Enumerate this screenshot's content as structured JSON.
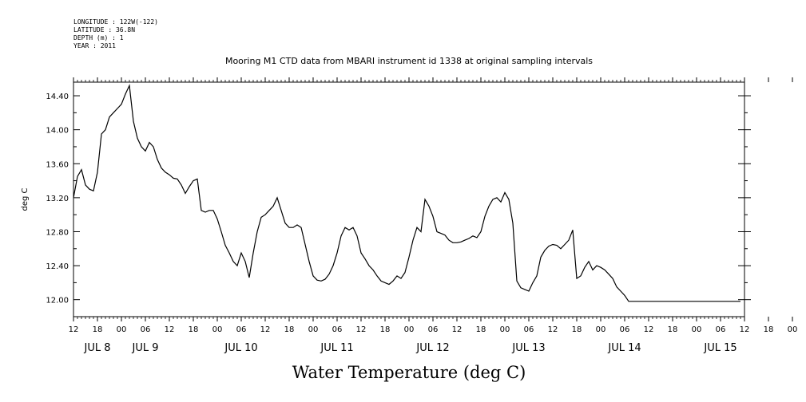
{
  "meta": {
    "longitude": "LONGITUDE : 122W(-122)",
    "latitude": "LATITUDE : 36.8N",
    "depth": "DEPTH (m) : 1",
    "year": "YEAR : 2011"
  },
  "chart_data": {
    "type": "line",
    "title": "Mooring M1 CTD data from MBARI instrument id 1338 at original sampling intervals",
    "xlabel": "Water Temperature (deg C)",
    "ylabel": "deg C",
    "xlim_hours": [
      0,
      168
    ],
    "ylim": [
      11.8,
      14.56
    ],
    "yticks": [
      "12.00",
      "12.40",
      "12.80",
      "13.20",
      "13.60",
      "14.00",
      "14.40"
    ],
    "xticks": [
      "12",
      "18",
      "00",
      "06",
      "12",
      "18",
      "00",
      "06",
      "12",
      "18",
      "00",
      "06",
      "12",
      "18",
      "00",
      "06",
      "12",
      "18",
      "00",
      "06",
      "12",
      "18",
      "00",
      "06",
      "12",
      "18",
      "00",
      "06",
      "12",
      "18",
      "00",
      "06"
    ],
    "day_labels": [
      "JUL  8",
      "JUL  9",
      "JUL 10",
      "JUL 11",
      "JUL 12",
      "JUL 13",
      "JUL 14",
      "JUL 15"
    ],
    "grid": false,
    "series": [
      {
        "x": [
          0,
          1,
          2,
          3,
          4,
          5,
          6,
          7,
          8,
          9,
          10,
          11,
          12,
          13,
          14,
          15,
          16,
          17,
          18,
          19,
          20,
          21,
          22,
          23,
          24,
          25,
          26,
          27,
          28,
          29,
          30,
          31,
          32,
          33,
          34,
          35,
          36,
          37,
          38,
          39,
          40,
          41,
          42,
          43,
          44,
          45,
          46,
          47,
          48,
          49,
          50,
          51,
          52,
          53,
          54,
          55,
          56,
          57,
          58,
          59,
          60,
          61,
          62,
          63,
          64,
          65,
          66,
          67,
          68,
          69,
          70,
          71,
          72,
          73,
          74,
          75,
          76,
          77,
          78,
          79,
          80,
          81,
          82,
          83,
          84,
          85,
          86,
          87,
          88,
          89,
          90,
          91,
          92,
          93,
          94,
          95,
          96,
          97,
          98,
          99,
          100,
          101,
          102,
          103,
          104,
          105,
          106,
          107,
          108,
          109,
          110,
          111,
          112,
          113,
          114,
          115,
          116,
          117,
          118,
          119,
          120,
          121,
          122,
          123,
          124,
          125,
          126,
          127,
          128,
          129,
          130,
          131,
          132,
          133,
          134,
          135,
          136,
          137,
          138,
          139,
          140,
          141,
          142,
          143,
          144,
          145,
          146,
          147,
          148,
          149,
          150,
          151,
          152,
          153,
          154,
          155,
          156,
          157,
          158,
          159,
          160,
          161,
          162,
          163,
          164,
          165,
          166,
          167,
          168
        ],
        "y": [
          13.2,
          13.45,
          13.53,
          13.35,
          13.3,
          13.28,
          13.5,
          13.95,
          14.0,
          14.15,
          14.2,
          14.25,
          14.3,
          14.42,
          14.52,
          14.1,
          13.9,
          13.8,
          13.75,
          13.85,
          13.8,
          13.65,
          13.55,
          13.5,
          13.47,
          13.43,
          13.42,
          13.35,
          13.25,
          13.33,
          13.4,
          13.42,
          13.05,
          13.03,
          13.05,
          13.05,
          12.95,
          12.8,
          12.64,
          12.55,
          12.45,
          12.4,
          12.55,
          12.45,
          12.26,
          12.55,
          12.8,
          12.97,
          13.0,
          13.05,
          13.1,
          13.2,
          13.05,
          12.9,
          12.85,
          12.85,
          12.88,
          12.85,
          12.65,
          12.45,
          12.28,
          12.23,
          12.22,
          12.24,
          12.3,
          12.4,
          12.55,
          12.75,
          12.85,
          12.82,
          12.85,
          12.75,
          12.55,
          12.48,
          12.4,
          12.35,
          12.28,
          12.22,
          12.2,
          12.18,
          12.22,
          12.28,
          12.25,
          12.32,
          12.5,
          12.7,
          12.85,
          12.8,
          13.18,
          13.1,
          12.98,
          12.8,
          12.78,
          12.76,
          12.7,
          12.67,
          12.67,
          12.68,
          12.7,
          12.72,
          12.75,
          12.73,
          12.8,
          12.98,
          13.1,
          13.18,
          13.2,
          13.15,
          13.26,
          13.18,
          12.9,
          12.22,
          12.14,
          12.12,
          12.1,
          12.2,
          12.28,
          12.5,
          12.58,
          12.63,
          12.65,
          12.64,
          12.6,
          12.65,
          12.7,
          12.82,
          12.25,
          12.28,
          12.38,
          12.45,
          12.35,
          12.4,
          12.38,
          12.35,
          12.3,
          12.25,
          12.15,
          12.1,
          12.05,
          11.98,
          11.98,
          11.98,
          11.98,
          11.98,
          11.98,
          11.98,
          11.98,
          11.98,
          11.98,
          11.98,
          11.98,
          11.98,
          11.98,
          11.98,
          11.98,
          11.98,
          11.98,
          11.98,
          11.98,
          11.98,
          11.98,
          11.98,
          11.98,
          11.98,
          11.98,
          11.98,
          11.98,
          11.98,
          11.98
        ]
      }
    ]
  }
}
